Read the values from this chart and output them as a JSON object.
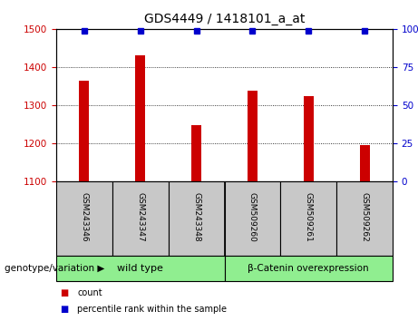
{
  "title": "GDS4449 / 1418101_a_at",
  "samples": [
    "GSM243346",
    "GSM243347",
    "GSM243348",
    "GSM509260",
    "GSM509261",
    "GSM509262"
  ],
  "counts": [
    1365,
    1430,
    1248,
    1337,
    1323,
    1195
  ],
  "percentile_ranks": [
    99,
    99,
    99,
    99,
    99,
    99
  ],
  "ylim_left": [
    1100,
    1500
  ],
  "yticks_left": [
    1100,
    1200,
    1300,
    1400,
    1500
  ],
  "ylim_right": [
    0,
    100
  ],
  "yticks_right": [
    0,
    25,
    50,
    75,
    100
  ],
  "bar_color": "#cc0000",
  "dot_color": "#0000cc",
  "bar_width": 0.18,
  "group_wt_label": "wild type",
  "group_beta_label": "β-Catenin overexpression",
  "group_label_prefix": "genotype/variation",
  "legend_count_label": "count",
  "legend_percentile_label": "percentile rank within the sample",
  "tick_color_left": "#cc0000",
  "tick_color_right": "#0000cc",
  "xtick_bg": "#c8c8c8",
  "green_bg": "#90ee90",
  "title_fontsize": 10,
  "tick_fontsize": 7.5,
  "label_fontsize": 7.5
}
